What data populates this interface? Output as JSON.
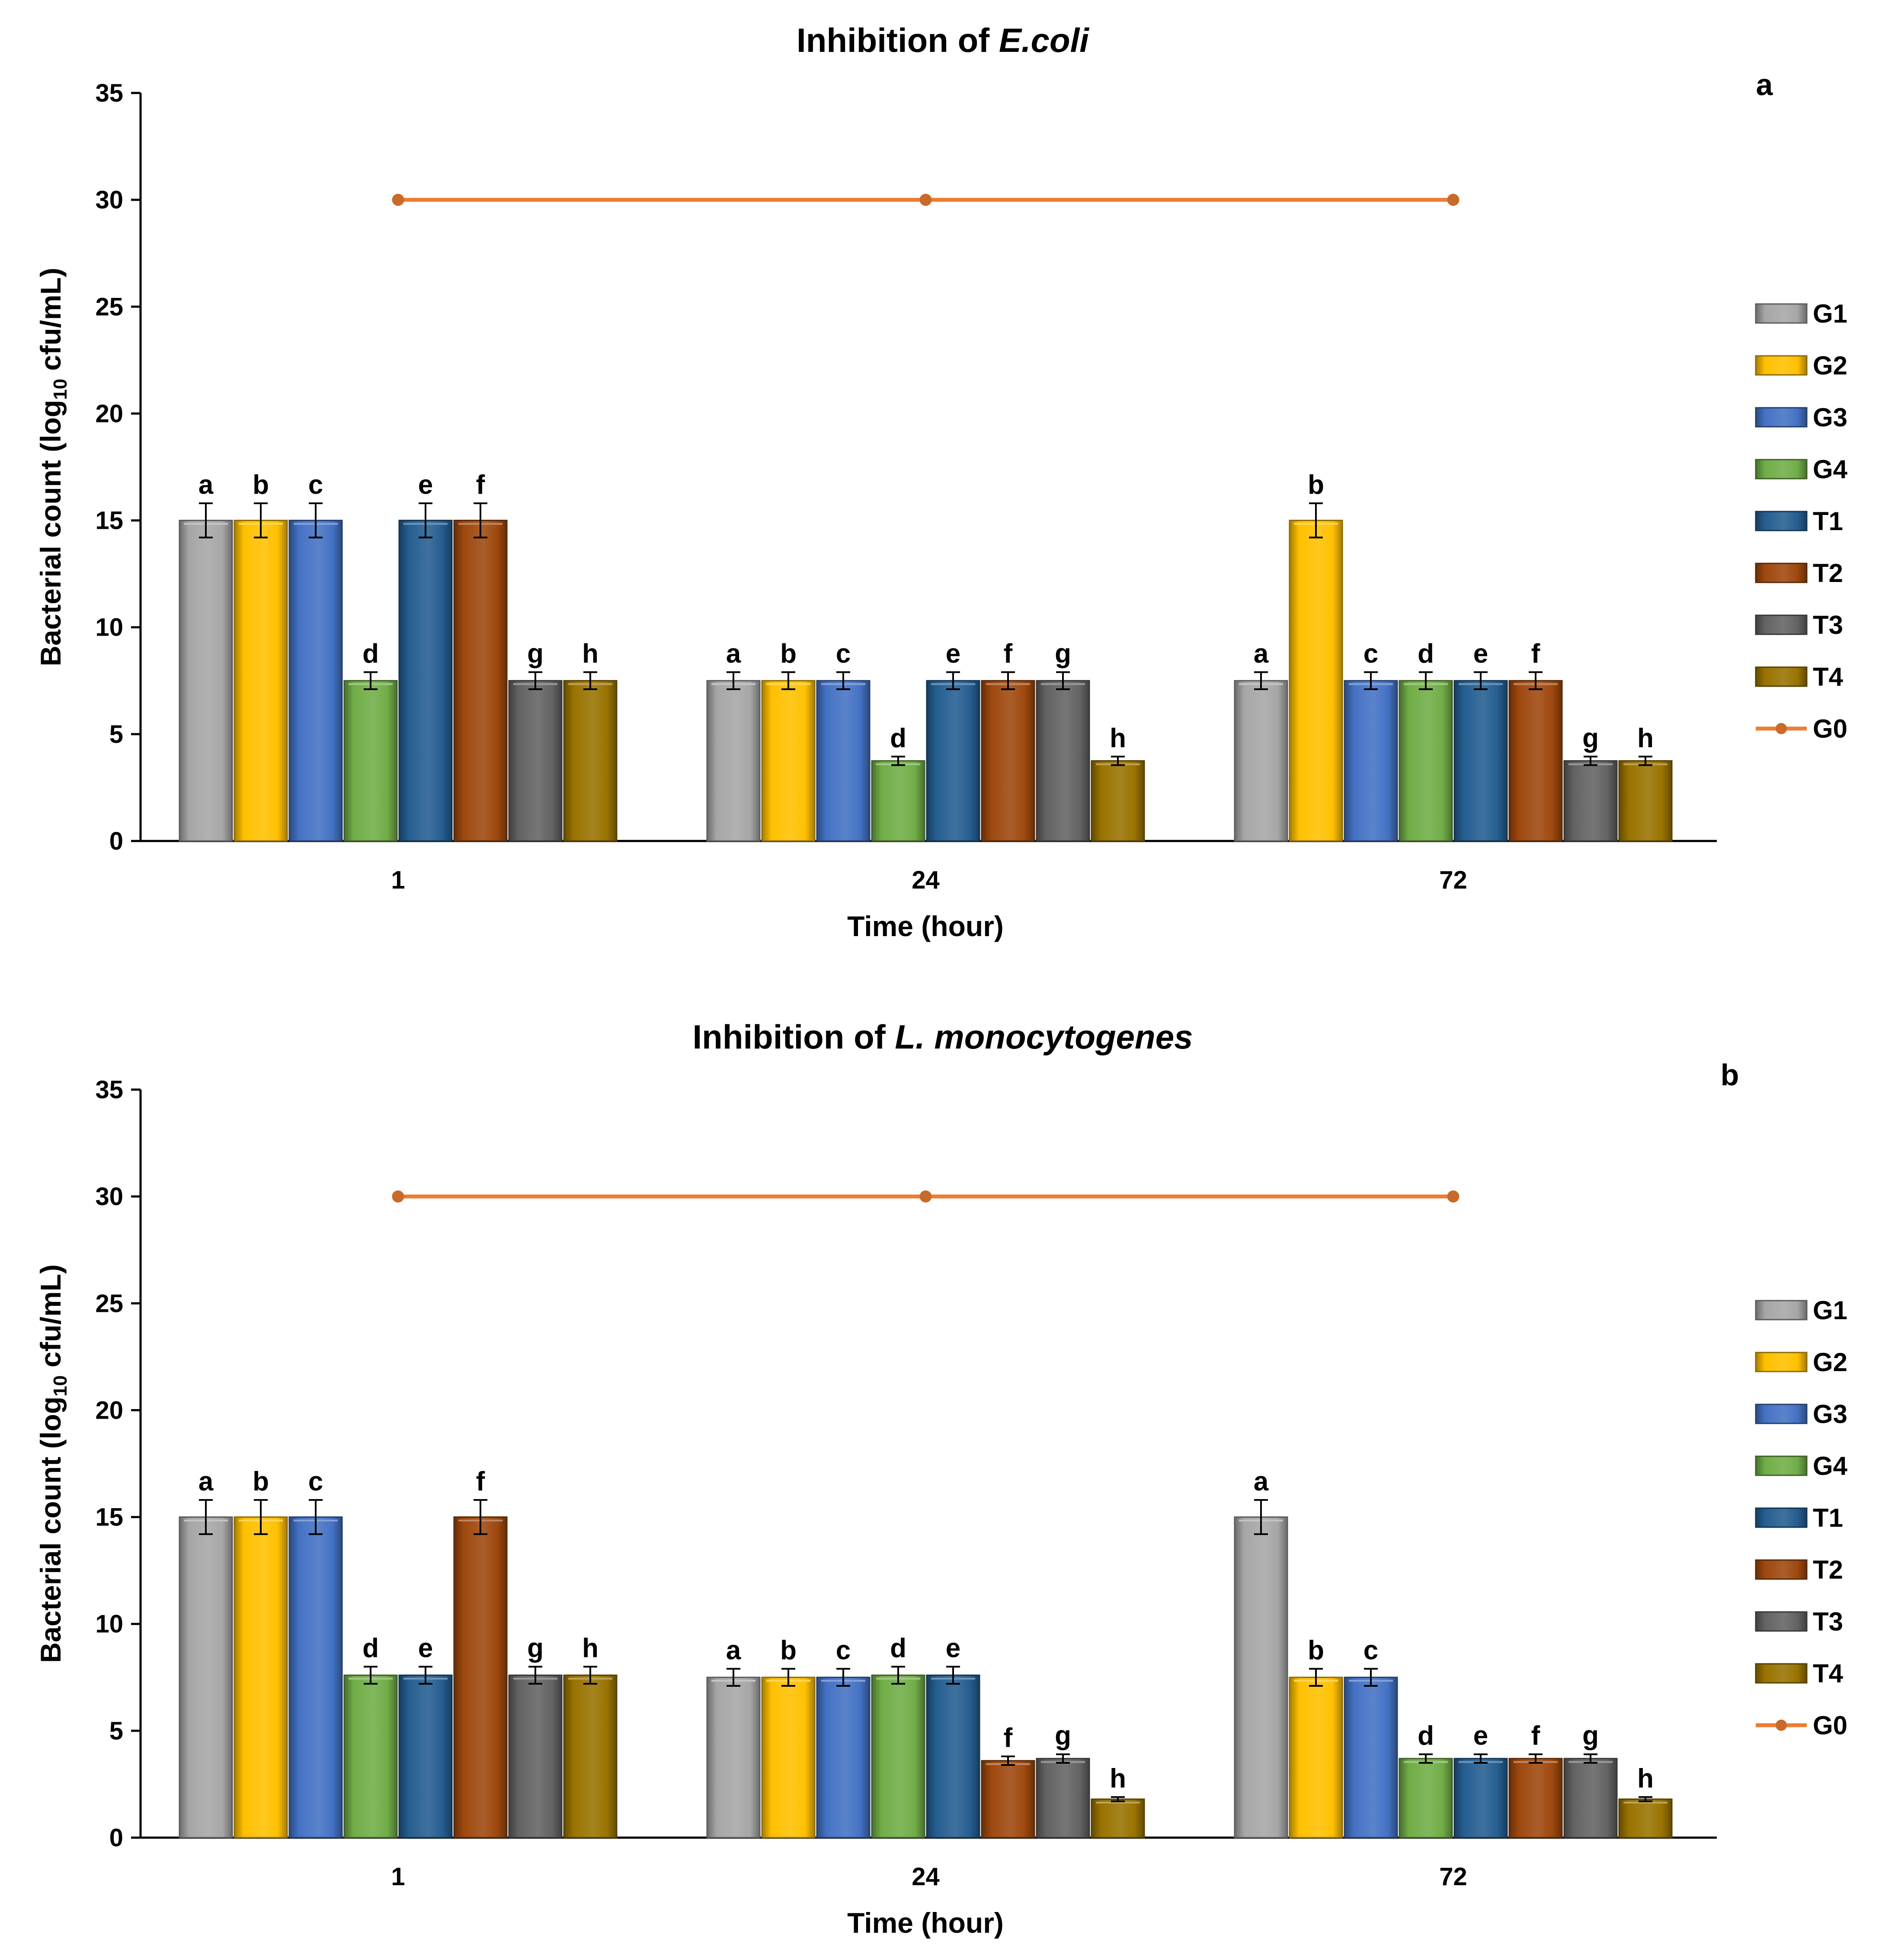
{
  "chart_data": [
    {
      "type": "bar",
      "panel_label": "a",
      "title_prefix": "Inhibition of ",
      "title_italic": "E.coli",
      "xlabel": "Time (hour)",
      "ylabel_prefix": "Bacterial count (log",
      "ylabel_sub": "10",
      "ylabel_suffix": " cfu/mL)",
      "ylim": [
        0,
        35
      ],
      "yticks": [
        "0",
        "5",
        "10",
        "15",
        "20",
        "25",
        "30",
        "35"
      ],
      "categories": [
        "1",
        "24",
        "72"
      ],
      "series": [
        {
          "name": "G1",
          "color": "#a6a6a6",
          "values": [
            15,
            7.5,
            7.5
          ],
          "errors": [
            0.8,
            0.4,
            0.4
          ],
          "letters": [
            "a",
            "a",
            "a"
          ]
        },
        {
          "name": "G2",
          "color": "#ffc000",
          "values": [
            15,
            7.5,
            15
          ],
          "errors": [
            0.8,
            0.4,
            0.8
          ],
          "letters": [
            "b",
            "b",
            "b"
          ]
        },
        {
          "name": "G3",
          "color": "#4472c4",
          "values": [
            15,
            7.5,
            7.5
          ],
          "errors": [
            0.8,
            0.4,
            0.4
          ],
          "letters": [
            "c",
            "c",
            "c"
          ]
        },
        {
          "name": "G4",
          "color": "#70ad47",
          "values": [
            7.5,
            3.75,
            7.5
          ],
          "errors": [
            0.4,
            0.2,
            0.4
          ],
          "letters": [
            "d",
            "d",
            "d"
          ]
        },
        {
          "name": "T1",
          "color": "#255e91",
          "values": [
            15,
            7.5,
            7.5
          ],
          "errors": [
            0.8,
            0.4,
            0.4
          ],
          "letters": [
            "e",
            "e",
            "e"
          ]
        },
        {
          "name": "T2",
          "color": "#9e480e",
          "values": [
            15,
            7.5,
            7.5
          ],
          "errors": [
            0.8,
            0.4,
            0.4
          ],
          "letters": [
            "f",
            "f",
            "f"
          ]
        },
        {
          "name": "T3",
          "color": "#636363",
          "values": [
            7.5,
            7.5,
            3.75
          ],
          "errors": [
            0.4,
            0.4,
            0.2
          ],
          "letters": [
            "g",
            "g",
            "g"
          ]
        },
        {
          "name": "T4",
          "color": "#997300",
          "values": [
            7.5,
            3.75,
            3.75
          ],
          "errors": [
            0.4,
            0.2,
            0.2
          ],
          "letters": [
            "h",
            "h",
            "h"
          ]
        }
      ],
      "line_series": {
        "name": "G0",
        "color": "#ed7d31",
        "values": [
          30,
          30,
          30
        ]
      }
    },
    {
      "type": "bar",
      "panel_label": "b",
      "title_prefix": "Inhibition of ",
      "title_italic": "L. monocytogenes",
      "xlabel": "Time (hour)",
      "ylabel_prefix": "Bacterial count (log",
      "ylabel_sub": "10",
      "ylabel_suffix": " cfu/mL)",
      "ylim": [
        0,
        35
      ],
      "yticks": [
        "0",
        "5",
        "10",
        "15",
        "20",
        "25",
        "30",
        "35"
      ],
      "categories": [
        "1",
        "24",
        "72"
      ],
      "series": [
        {
          "name": "G1",
          "color": "#a6a6a6",
          "values": [
            15,
            7.5,
            15
          ],
          "errors": [
            0.8,
            0.4,
            0.8
          ],
          "letters": [
            "a",
            "a",
            "a"
          ]
        },
        {
          "name": "G2",
          "color": "#ffc000",
          "values": [
            15,
            7.5,
            7.5
          ],
          "errors": [
            0.8,
            0.4,
            0.4
          ],
          "letters": [
            "b",
            "b",
            "b"
          ]
        },
        {
          "name": "G3",
          "color": "#4472c4",
          "values": [
            15,
            7.5,
            7.5
          ],
          "errors": [
            0.8,
            0.4,
            0.4
          ],
          "letters": [
            "c",
            "c",
            "c"
          ]
        },
        {
          "name": "G4",
          "color": "#70ad47",
          "values": [
            7.6,
            7.6,
            3.7
          ],
          "errors": [
            0.4,
            0.4,
            0.2
          ],
          "letters": [
            "d",
            "d",
            "d"
          ]
        },
        {
          "name": "T1",
          "color": "#255e91",
          "values": [
            7.6,
            7.6,
            3.7
          ],
          "errors": [
            0.4,
            0.4,
            0.2
          ],
          "letters": [
            "e",
            "e",
            "e"
          ]
        },
        {
          "name": "T2",
          "color": "#9e480e",
          "values": [
            15,
            3.6,
            3.7
          ],
          "errors": [
            0.8,
            0.2,
            0.2
          ],
          "letters": [
            "f",
            "f",
            "f"
          ]
        },
        {
          "name": "T3",
          "color": "#636363",
          "values": [
            7.6,
            3.7,
            3.7
          ],
          "errors": [
            0.4,
            0.2,
            0.2
          ],
          "letters": [
            "g",
            "g",
            "g"
          ]
        },
        {
          "name": "T4",
          "color": "#997300",
          "values": [
            7.6,
            1.8,
            1.8
          ],
          "errors": [
            0.4,
            0.1,
            0.1
          ],
          "letters": [
            "h",
            "h",
            "h"
          ]
        }
      ],
      "line_series": {
        "name": "G0",
        "color": "#ed7d31",
        "values": [
          30,
          30,
          30
        ]
      }
    }
  ]
}
